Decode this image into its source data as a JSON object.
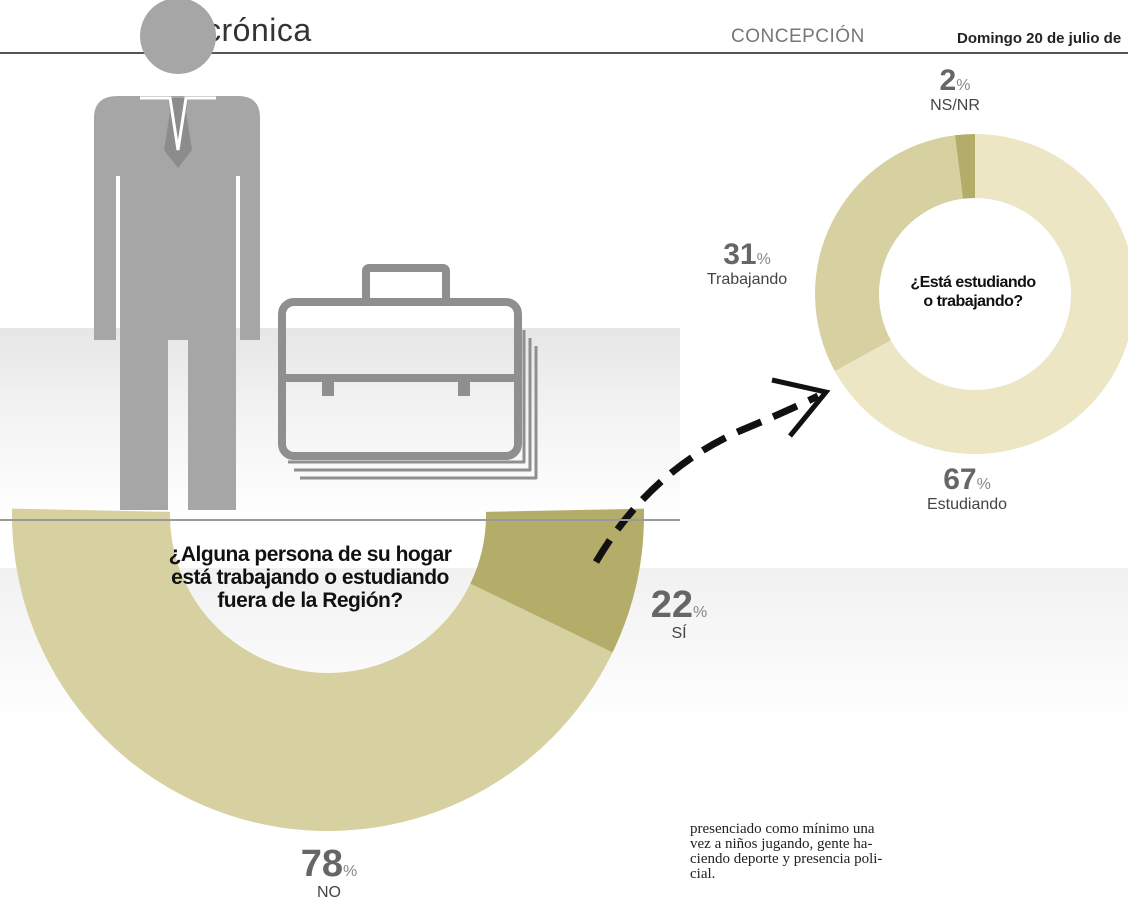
{
  "header": {
    "section": "crónica",
    "city": "CONCEPCIÓN",
    "date": "Domingo 20 de julio de"
  },
  "colors": {
    "light": "#ece6c4",
    "mid": "#d7d0a0",
    "dark": "#b4ad6a",
    "icon_gray": "#a6a6a6"
  },
  "icons": [
    "person-icon",
    "briefcase-icon",
    "dashed-arrow-icon"
  ],
  "chart_data": [
    {
      "type": "pie",
      "style": "donut",
      "title": "¿Alguna persona de su hogar está trabajando o estudiando fuera de la Región?",
      "title_lines": [
        "¿Alguna persona de su hogar",
        "está trabajando o estudiando",
        "fuera de la Región?"
      ],
      "slices": [
        {
          "label": "NO",
          "value": 78,
          "display": "78",
          "unit": "%"
        },
        {
          "label": "SÍ",
          "value": 22,
          "display": "22",
          "unit": "%"
        }
      ]
    },
    {
      "type": "pie",
      "style": "donut",
      "title": "¿Está estudiando o trabajando?",
      "title_lines": [
        "¿Está estudiando",
        "o trabajando?"
      ],
      "slices": [
        {
          "label": "Estudiando",
          "value": 67,
          "display": "67",
          "unit": "%"
        },
        {
          "label": "Trabajando",
          "value": 31,
          "display": "31",
          "unit": "%"
        },
        {
          "label": "NS/NR",
          "value": 2,
          "display": "2",
          "unit": "%"
        }
      ]
    }
  ],
  "article": {
    "text": "presenciado como mínimo una\nvez a niños jugando, gente ha-\nciendo deporte y presencia poli-\ncial."
  }
}
